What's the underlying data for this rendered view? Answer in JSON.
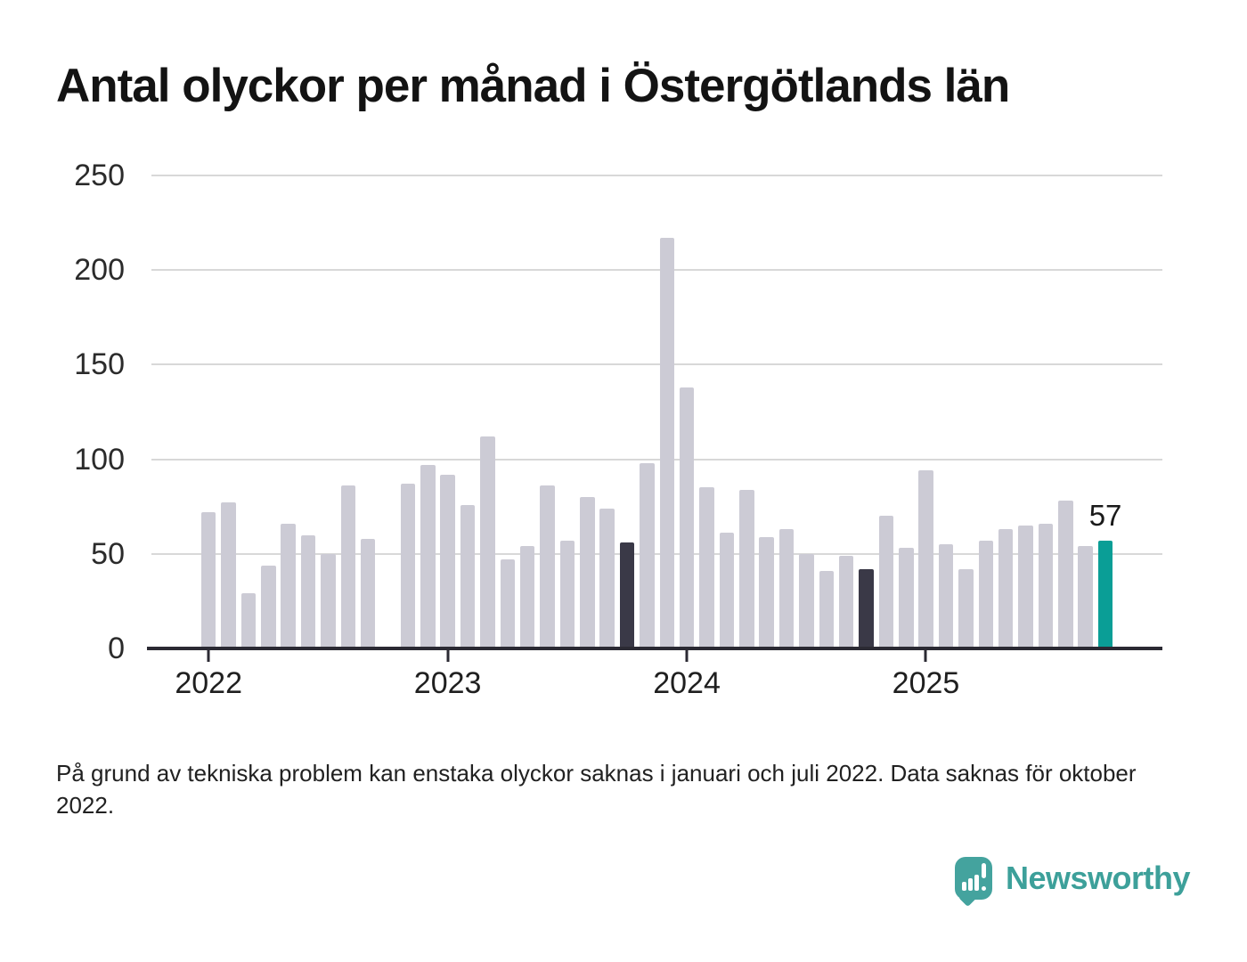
{
  "title": "Antal olyckor per månad i Östergötlands län",
  "footnote": "På grund av tekniska problem kan enstaka olyckor saknas i januari och juli 2022. Data saknas för oktober 2022.",
  "logo": {
    "text": "Newsworthy",
    "icon": "newsworthy-speech-bubble-bar-chart-icon"
  },
  "colors": {
    "bar_normal": "#cccbd5",
    "bar_highlight": "#3a3947",
    "bar_current": "#0a9e96",
    "gridline": "#d8d8d8",
    "axis": "#2b2a33",
    "logo_teal": "#3da09a",
    "text": "#131313"
  },
  "chart_data": {
    "type": "bar",
    "title": "Antal olyckor per månad i Östergötlands län",
    "xlabel": "",
    "ylabel": "",
    "ylim": [
      0,
      250
    ],
    "yticks": [
      0,
      50,
      100,
      150,
      200,
      250
    ],
    "grid": true,
    "legend": "none",
    "x_tick_years": [
      "2022",
      "2023",
      "2024",
      "2025"
    ],
    "current_value_label": "57",
    "bars": [
      {
        "month": "2022-01",
        "value": 72,
        "kind": "normal"
      },
      {
        "month": "2022-02",
        "value": 77,
        "kind": "normal"
      },
      {
        "month": "2022-03",
        "value": 29,
        "kind": "normal"
      },
      {
        "month": "2022-04",
        "value": 44,
        "kind": "normal"
      },
      {
        "month": "2022-05",
        "value": 66,
        "kind": "normal"
      },
      {
        "month": "2022-06",
        "value": 60,
        "kind": "normal"
      },
      {
        "month": "2022-07",
        "value": 50,
        "kind": "normal"
      },
      {
        "month": "2022-08",
        "value": 86,
        "kind": "normal"
      },
      {
        "month": "2022-09",
        "value": 58,
        "kind": "normal"
      },
      {
        "month": "2022-10",
        "value": null,
        "kind": "missing"
      },
      {
        "month": "2022-11",
        "value": 87,
        "kind": "normal"
      },
      {
        "month": "2022-12",
        "value": 97,
        "kind": "normal"
      },
      {
        "month": "2023-01",
        "value": 92,
        "kind": "normal"
      },
      {
        "month": "2023-02",
        "value": 76,
        "kind": "normal"
      },
      {
        "month": "2023-03",
        "value": 112,
        "kind": "normal"
      },
      {
        "month": "2023-04",
        "value": 47,
        "kind": "normal"
      },
      {
        "month": "2023-05",
        "value": 54,
        "kind": "normal"
      },
      {
        "month": "2023-06",
        "value": 86,
        "kind": "normal"
      },
      {
        "month": "2023-07",
        "value": 57,
        "kind": "normal"
      },
      {
        "month": "2023-08",
        "value": 80,
        "kind": "normal"
      },
      {
        "month": "2023-09",
        "value": 74,
        "kind": "normal"
      },
      {
        "month": "2023-10",
        "value": 56,
        "kind": "highlight"
      },
      {
        "month": "2023-11",
        "value": 98,
        "kind": "normal"
      },
      {
        "month": "2023-12",
        "value": 217,
        "kind": "normal"
      },
      {
        "month": "2024-01",
        "value": 138,
        "kind": "normal"
      },
      {
        "month": "2024-02",
        "value": 85,
        "kind": "normal"
      },
      {
        "month": "2024-03",
        "value": 61,
        "kind": "normal"
      },
      {
        "month": "2024-04",
        "value": 84,
        "kind": "normal"
      },
      {
        "month": "2024-05",
        "value": 59,
        "kind": "normal"
      },
      {
        "month": "2024-06",
        "value": 63,
        "kind": "normal"
      },
      {
        "month": "2024-07",
        "value": 50,
        "kind": "normal"
      },
      {
        "month": "2024-08",
        "value": 41,
        "kind": "normal"
      },
      {
        "month": "2024-09",
        "value": 49,
        "kind": "normal"
      },
      {
        "month": "2024-10",
        "value": 42,
        "kind": "highlight"
      },
      {
        "month": "2024-11",
        "value": 70,
        "kind": "normal"
      },
      {
        "month": "2024-12",
        "value": 53,
        "kind": "normal"
      },
      {
        "month": "2025-01",
        "value": 94,
        "kind": "normal"
      },
      {
        "month": "2025-02",
        "value": 55,
        "kind": "normal"
      },
      {
        "month": "2025-03",
        "value": 42,
        "kind": "normal"
      },
      {
        "month": "2025-04",
        "value": 57,
        "kind": "normal"
      },
      {
        "month": "2025-05",
        "value": 63,
        "kind": "normal"
      },
      {
        "month": "2025-06",
        "value": 65,
        "kind": "normal"
      },
      {
        "month": "2025-07",
        "value": 66,
        "kind": "normal"
      },
      {
        "month": "2025-08",
        "value": 78,
        "kind": "normal"
      },
      {
        "month": "2025-09",
        "value": 54,
        "kind": "normal"
      },
      {
        "month": "2025-10",
        "value": 57,
        "kind": "current",
        "label": "57"
      }
    ]
  }
}
